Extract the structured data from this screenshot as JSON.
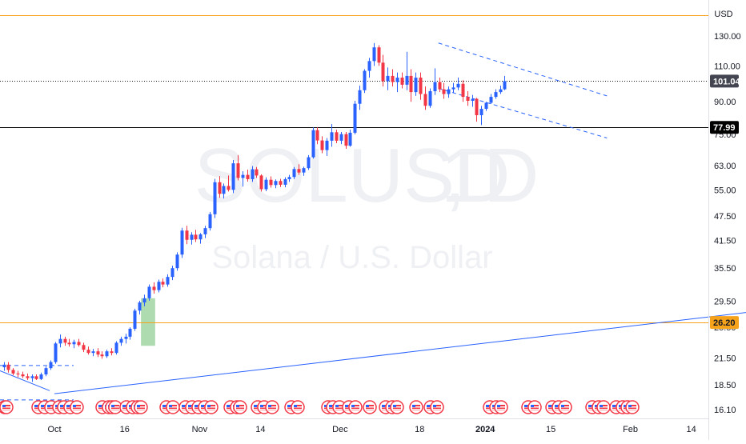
{
  "chart_data": {
    "type": "candlestick",
    "symbol": "SOLUSD",
    "interval": "1D",
    "description": "Solana / U.S. Dollar",
    "currency": "USD",
    "last_price": "101.04",
    "y_scale": "log",
    "y_ticks": [
      "130.00",
      "110.00",
      "90.00",
      "75.00",
      "63.00",
      "55.00",
      "47.50",
      "41.50",
      "35.50",
      "29.50",
      "25.50",
      "21.50",
      "18.50",
      "16.10"
    ],
    "x_ticks": [
      "Oct",
      "16",
      "Nov",
      "14",
      "Dec",
      "18",
      "2024",
      "15",
      "Feb",
      "14"
    ],
    "x_tick_dates": [
      "2023-10-01",
      "2023-10-16",
      "2023-11-01",
      "2023-11-14",
      "2023-12-01",
      "2023-12-18",
      "2024-01-01",
      "2024-01-15",
      "2024-02-01",
      "2024-02-14"
    ],
    "horizontal_levels": [
      {
        "price": 146,
        "label": "",
        "color": "#f7a21b"
      },
      {
        "price": 77.99,
        "label": "77.99",
        "color": "#000000"
      },
      {
        "price": 26.2,
        "label": "26.20",
        "color": "#f7a21b"
      }
    ],
    "candles": [
      [
        20.4,
        21.0,
        20.0,
        20.7
      ],
      [
        20.7,
        21.0,
        19.8,
        20.1
      ],
      [
        20.1,
        20.3,
        19.5,
        19.7
      ],
      [
        19.7,
        20.0,
        19.3,
        19.6
      ],
      [
        19.6,
        19.9,
        19.2,
        19.4
      ],
      [
        19.4,
        19.7,
        19.0,
        19.2
      ],
      [
        19.2,
        19.6,
        18.8,
        19.4
      ],
      [
        19.4,
        19.6,
        19.0,
        19.1
      ],
      [
        19.1,
        19.8,
        19.0,
        19.6
      ],
      [
        19.6,
        20.5,
        19.4,
        20.3
      ],
      [
        20.3,
        21.2,
        20.1,
        21.0
      ],
      [
        21.0,
        23.5,
        20.8,
        23.3
      ],
      [
        23.3,
        24.5,
        22.8,
        23.9
      ],
      [
        23.9,
        24.2,
        23.0,
        23.4
      ],
      [
        23.4,
        23.9,
        22.9,
        23.2
      ],
      [
        23.2,
        23.8,
        22.7,
        23.5
      ],
      [
        23.5,
        23.9,
        22.9,
        23.1
      ],
      [
        23.1,
        23.4,
        22.2,
        22.5
      ],
      [
        22.5,
        22.9,
        21.9,
        22.1
      ],
      [
        22.1,
        22.6,
        21.7,
        22.3
      ],
      [
        22.3,
        22.7,
        21.6,
        21.9
      ],
      [
        21.9,
        22.3,
        21.4,
        21.7
      ],
      [
        21.7,
        22.5,
        21.5,
        22.3
      ],
      [
        22.3,
        22.7,
        21.8,
        22.1
      ],
      [
        22.1,
        23.6,
        21.9,
        23.4
      ],
      [
        23.4,
        24.2,
        23.0,
        23.9
      ],
      [
        23.9,
        24.6,
        23.3,
        24.2
      ],
      [
        24.2,
        25.5,
        23.8,
        25.3
      ],
      [
        25.3,
        28.3,
        25.0,
        28.0
      ],
      [
        28.0,
        29.6,
        27.4,
        29.3
      ],
      [
        29.3,
        30.6,
        28.7,
        30.0
      ],
      [
        30.0,
        32.4,
        29.6,
        32.0
      ],
      [
        32.0,
        32.8,
        30.8,
        31.4
      ],
      [
        31.4,
        33.3,
        31.0,
        32.9
      ],
      [
        32.9,
        33.5,
        31.9,
        32.4
      ],
      [
        32.4,
        34.3,
        32.0,
        33.8
      ],
      [
        33.8,
        36.0,
        33.2,
        35.5
      ],
      [
        35.5,
        38.8,
        35.0,
        38.3
      ],
      [
        38.3,
        44.5,
        37.6,
        43.8
      ],
      [
        43.8,
        45.0,
        40.6,
        41.6
      ],
      [
        41.6,
        43.4,
        40.5,
        42.8
      ],
      [
        42.8,
        44.0,
        41.1,
        41.7
      ],
      [
        41.7,
        43.2,
        40.7,
        42.9
      ],
      [
        42.9,
        45.0,
        42.0,
        44.4
      ],
      [
        44.4,
        48.6,
        43.8,
        48.0
      ],
      [
        48.0,
        58.5,
        47.0,
        57.4
      ],
      [
        57.4,
        59.4,
        52.6,
        53.8
      ],
      [
        53.8,
        57.0,
        52.4,
        56.2
      ],
      [
        56.2,
        59.6,
        54.5,
        55.0
      ],
      [
        55.0,
        65.0,
        54.0,
        63.8
      ],
      [
        63.8,
        66.8,
        58.0,
        58.8
      ],
      [
        58.8,
        61.0,
        56.0,
        59.8
      ],
      [
        59.8,
        61.6,
        57.6,
        58.4
      ],
      [
        58.4,
        62.8,
        57.5,
        61.7
      ],
      [
        61.7,
        62.5,
        58.8,
        59.6
      ],
      [
        59.6,
        60.0,
        54.5,
        55.2
      ],
      [
        55.2,
        59.0,
        54.6,
        58.2
      ],
      [
        58.2,
        59.3,
        55.7,
        56.5
      ],
      [
        56.5,
        58.3,
        55.5,
        57.8
      ],
      [
        57.8,
        58.5,
        55.9,
        56.6
      ],
      [
        56.6,
        59.0,
        55.8,
        58.4
      ],
      [
        58.4,
        59.8,
        57.5,
        59.1
      ],
      [
        59.1,
        62.5,
        58.4,
        61.8
      ],
      [
        61.8,
        63.5,
        59.8,
        60.6
      ],
      [
        60.6,
        62.6,
        59.5,
        62.1
      ],
      [
        62.1,
        66.8,
        61.5,
        66.0
      ],
      [
        66.0,
        78.0,
        65.5,
        76.8
      ],
      [
        76.8,
        78.0,
        71.0,
        72.5
      ],
      [
        72.5,
        74.2,
        67.5,
        68.7
      ],
      [
        68.7,
        73.5,
        66.5,
        72.4
      ],
      [
        72.4,
        79.5,
        70.0,
        75.9
      ],
      [
        75.9,
        77.0,
        71.4,
        72.4
      ],
      [
        72.4,
        76.0,
        71.0,
        75.1
      ],
      [
        75.1,
        76.0,
        69.2,
        70.4
      ],
      [
        70.4,
        77.0,
        70.0,
        75.7
      ],
      [
        75.7,
        90.5,
        75.0,
        89.0
      ],
      [
        89.0,
        98.5,
        86.0,
        96.0
      ],
      [
        96.0,
        108.0,
        94.5,
        107.0
      ],
      [
        107.0,
        115.0,
        103.0,
        113.0
      ],
      [
        113.0,
        125.0,
        110.0,
        122.0
      ],
      [
        122.0,
        123.5,
        110.0,
        112.0
      ],
      [
        112.0,
        117.0,
        98.0,
        101.0
      ],
      [
        101.0,
        109.0,
        96.0,
        104.0
      ],
      [
        104.0,
        108.0,
        98.0,
        100.5
      ],
      [
        100.5,
        106.0,
        95.0,
        103.0
      ],
      [
        103.0,
        106.0,
        97.0,
        99.0
      ],
      [
        99.0,
        119.0,
        96.0,
        104.0
      ],
      [
        104.0,
        108.0,
        90.0,
        95.0
      ],
      [
        95.0,
        106.0,
        93.0,
        103.0
      ],
      [
        103.0,
        106.0,
        91.0,
        94.0
      ],
      [
        94.0,
        98.0,
        86.0,
        88.0
      ],
      [
        88.0,
        97.0,
        87.0,
        95.5
      ],
      [
        95.5,
        108.5,
        93.5,
        100.5
      ],
      [
        100.5,
        103.0,
        95.0,
        96.5
      ],
      [
        96.5,
        100.0,
        91.5,
        94.0
      ],
      [
        94.0,
        98.0,
        92.0,
        96.5
      ],
      [
        96.5,
        100.0,
        94.5,
        97.5
      ],
      [
        97.5,
        103.0,
        96.0,
        99.5
      ],
      [
        99.5,
        101.5,
        90.0,
        92.5
      ],
      [
        92.5,
        95.5,
        88.0,
        90.5
      ],
      [
        90.5,
        93.5,
        87.5,
        91.5
      ],
      [
        91.5,
        92.0,
        80.5,
        83.5
      ],
      [
        83.5,
        88.0,
        79.0,
        86.5
      ],
      [
        86.5,
        90.0,
        85.5,
        89.5
      ],
      [
        89.5,
        94.0,
        89.0,
        92.5
      ],
      [
        92.5,
        96.5,
        91.5,
        95.0
      ],
      [
        95.0,
        98.5,
        94.0,
        96.5
      ],
      [
        96.5,
        104.0,
        96.0,
        101.04
      ]
    ],
    "trendlines": [
      {
        "name": "channel-upper",
        "style": "dashed",
        "color": "#2962ff",
        "points": [
          [
            "2023-12-22",
            125.0
          ],
          [
            "2024-01-27",
            93.0
          ]
        ]
      },
      {
        "name": "channel-lower",
        "style": "dashed",
        "color": "#2962ff",
        "points": [
          [
            "2023-12-22",
            97.0
          ],
          [
            "2024-01-27",
            73.5
          ]
        ]
      },
      {
        "name": "long-term-support",
        "style": "solid",
        "color": "#2962ff",
        "points": [
          [
            "2023-10-01",
            17.6
          ],
          [
            "2024-02-28",
            27.9
          ]
        ]
      }
    ],
    "highlight": {
      "from": "2023-10-20",
      "to": "2023-10-22",
      "low": 23.0,
      "high": 30.0,
      "color": "#4caf50"
    },
    "event_markers": {
      "type": "us-flag",
      "count": 45
    }
  }
}
